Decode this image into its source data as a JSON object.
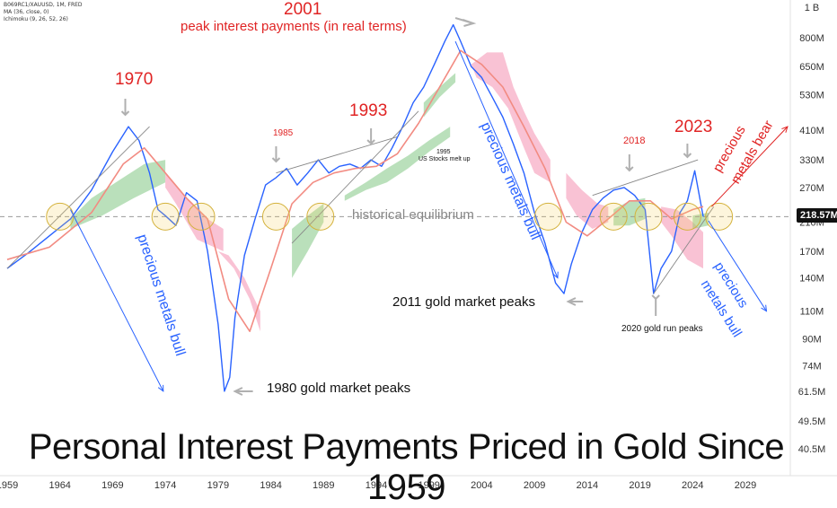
{
  "header": {
    "symbol": "B069RC1/XAUUSD, 1M, FRED",
    "ma": "MA (36, close, 0)",
    "ichimoku": "Ichimoku (9, 26, 52, 26)"
  },
  "title": "Personal Interest Payments Priced in Gold Since 1959",
  "current_price_label": "218.57M",
  "equilibrium_label": "historical equilibrium",
  "annotations": {
    "y2001": "2001",
    "peak_interest": "peak interest payments (in real terms)",
    "y1970": "1970",
    "y1985": "1985",
    "y1993": "1993",
    "y1995": "1995",
    "us_stocks": "US Stocks melt up",
    "y2018": "2018",
    "y2023": "2023",
    "bull1": "precious metals bull",
    "bull2": "precious metals bull",
    "bull3a": "precious",
    "bull3b": "metals bull",
    "bear_a": "precious",
    "bear_b": "metals bear",
    "gold_1980": "1980 gold market peaks",
    "gold_2011": "2011 gold market peaks",
    "gold_2020": "2020 gold run peaks"
  },
  "colors": {
    "price": "#2962ff",
    "ma": "#f28b82",
    "cloud_bull": "#81c784",
    "cloud_bear": "#f48fb1",
    "annotation_red": "#e02424",
    "annotation_blue": "#2962ff",
    "circle": "#f4d35e",
    "arrow": "#b0b0b0"
  },
  "chart_data": {
    "type": "line",
    "title": "Personal Interest Payments Priced in Gold Since 1959",
    "y_scale": "log",
    "yaxis_ticks": [
      "1 B",
      "800M",
      "650M",
      "530M",
      "410M",
      "330M",
      "270M",
      "218.57M",
      "210M",
      "170M",
      "140M",
      "110M",
      "90M",
      "74M",
      "61.5M",
      "49.5M",
      "40.5M"
    ],
    "xaxis_ticks": [
      "1959",
      "1964",
      "1969",
      "1974",
      "1979",
      "1984",
      "1989",
      "1994",
      "1999",
      "2004",
      "2009",
      "2014",
      "2019",
      "2024",
      "2029"
    ],
    "series": [
      {
        "name": "B069RC1/XAUUSD",
        "x": [
          1959.0,
          1961.0,
          1963.0,
          1965.0,
          1967.0,
          1969.0,
          1970.5,
          1971.5,
          1972.5,
          1973.3,
          1974.0,
          1975.0,
          1976.0,
          1977.0,
          1978.0,
          1979.0,
          1979.6,
          1980.1,
          1980.6,
          1981.5,
          1982.5,
          1983.5,
          1984.5,
          1985.5,
          1986.5,
          1987.5,
          1988.5,
          1989.5,
          1990.5,
          1991.5,
          1992.5,
          1993.5,
          1994.5,
          1995.5,
          1996.5,
          1997.5,
          1998.5,
          1999.5,
          2000.5,
          2001.3,
          2002.0,
          2003.0,
          2004.0,
          2005.0,
          2006.0,
          2007.0,
          2008.0,
          2009.0,
          2010.0,
          2011.0,
          2011.8,
          2012.5,
          2013.5,
          2014.5,
          2015.5,
          2016.5,
          2017.5,
          2018.5,
          2019.5,
          2020.3,
          2021.0,
          2022.0,
          2022.8,
          2023.5,
          2024.2,
          2025.0
        ],
        "y": [
          150,
          168,
          190,
          215,
          265,
          350,
          420,
          380,
          300,
          230,
          220,
          205,
          260,
          245,
          170,
          100,
          61.5,
          68,
          105,
          165,
          215,
          275,
          290,
          310,
          275,
          300,
          330,
          300,
          315,
          320,
          310,
          330,
          315,
          360,
          420,
          500,
          560,
          660,
          780,
          880,
          780,
          650,
          600,
          520,
          450,
          370,
          300,
          225,
          180,
          135,
          125,
          155,
          195,
          230,
          250,
          265,
          270,
          255,
          230,
          125,
          150,
          170,
          225,
          245,
          305,
          218.57
        ]
      },
      {
        "name": "MA (36, close, 0)",
        "x": [
          1959.0,
          1963.0,
          1967.0,
          1970.0,
          1972.0,
          1974.0,
          1976.0,
          1978.0,
          1980.0,
          1982.0,
          1984.0,
          1986.0,
          1988.0,
          1990.0,
          1992.0,
          1994.0,
          1996.0,
          1998.0,
          2000.0,
          2002.0,
          2004.0,
          2006.0,
          2008.0,
          2010.0,
          2012.0,
          2014.0,
          2016.0,
          2018.0,
          2020.0,
          2022.0,
          2024.0,
          2025.0
        ],
        "y": [
          160,
          175,
          225,
          320,
          360,
          300,
          250,
          215,
          120,
          95,
          150,
          240,
          280,
          300,
          310,
          315,
          345,
          430,
          560,
          730,
          660,
          560,
          420,
          310,
          210,
          190,
          215,
          245,
          245,
          215,
          230,
          235
        ]
      }
    ],
    "reference_line": {
      "label": "historical equilibrium",
      "y": 218.57
    }
  }
}
